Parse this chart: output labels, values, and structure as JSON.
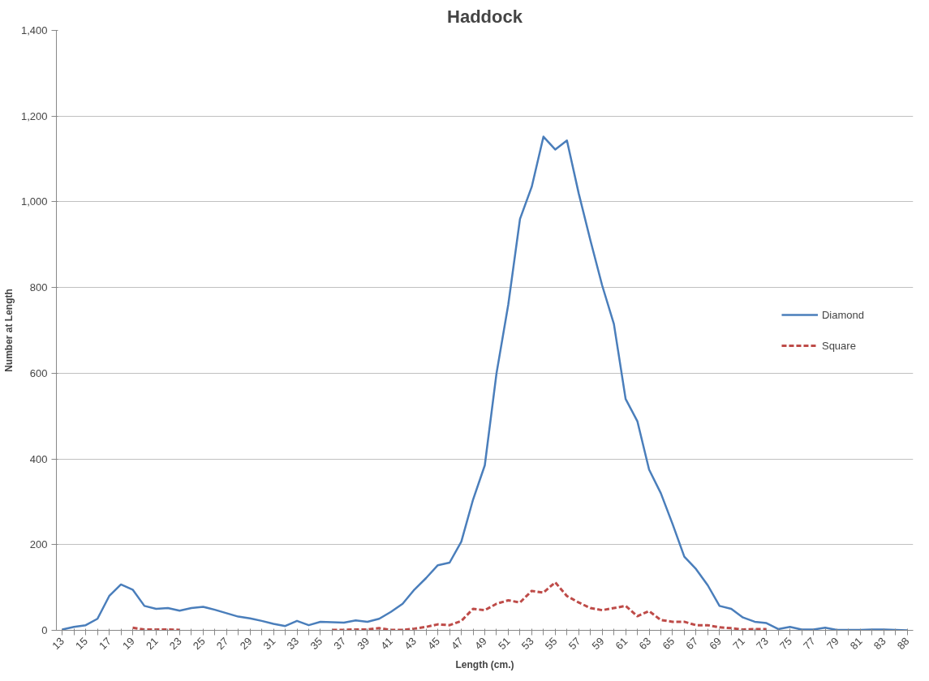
{
  "chart_data": {
    "type": "line",
    "title": "Haddock",
    "xlabel": "Length (cm.)",
    "ylabel": "Number at Length",
    "categories": [
      "13",
      null,
      "15",
      null,
      "17",
      null,
      "19",
      null,
      "21",
      null,
      "23",
      null,
      "25",
      null,
      "27",
      null,
      "29",
      null,
      "31",
      null,
      "33",
      null,
      "35",
      null,
      "37",
      null,
      "39",
      null,
      "41",
      null,
      "43",
      null,
      "45",
      null,
      "47",
      null,
      "49",
      null,
      "51",
      null,
      "53",
      null,
      "55",
      null,
      "57",
      null,
      "59",
      null,
      "61",
      null,
      "63",
      null,
      "65",
      null,
      "67",
      null,
      "69",
      null,
      "71",
      null,
      "73",
      null,
      "75",
      null,
      "77",
      null,
      "79",
      null,
      "81",
      null,
      "83",
      null,
      "88"
    ],
    "series": [
      {
        "name": "Diamond",
        "color": "#4a7ebb",
        "line_style": "solid",
        "values": [
          2,
          8,
          12,
          27,
          80,
          107,
          95,
          57,
          50,
          52,
          46,
          52,
          55,
          48,
          40,
          32,
          28,
          22,
          15,
          10,
          22,
          12,
          20,
          19,
          18,
          23,
          20,
          27,
          43,
          62,
          95,
          122,
          152,
          158,
          207,
          305,
          385,
          600,
          760,
          960,
          1035,
          1152,
          1122,
          1143,
          1020,
          910,
          805,
          715,
          540,
          488,
          375,
          320,
          248,
          172,
          143,
          105,
          57,
          50,
          30,
          20,
          17,
          3,
          8,
          2,
          2,
          6,
          1,
          1,
          1,
          2,
          2,
          1,
          0
        ]
      },
      {
        "name": "Square",
        "color": "#be4b48",
        "line_style": "dashed",
        "values": [
          null,
          null,
          null,
          null,
          null,
          null,
          6,
          2,
          2,
          2,
          1,
          null,
          null,
          null,
          null,
          null,
          null,
          null,
          null,
          null,
          null,
          null,
          null,
          1,
          1,
          2,
          2,
          5,
          1,
          1,
          4,
          8,
          14,
          12,
          22,
          50,
          47,
          62,
          70,
          65,
          92,
          88,
          112,
          80,
          65,
          52,
          47,
          52,
          57,
          33,
          45,
          24,
          20,
          20,
          12,
          12,
          7,
          5,
          2,
          3,
          3,
          null,
          null,
          null,
          null,
          null,
          null,
          null,
          null,
          null,
          null,
          null,
          null
        ]
      }
    ],
    "ylim": [
      0,
      1400
    ],
    "yticks": [
      {
        "value": 0,
        "label": "0"
      },
      {
        "value": 200,
        "label": "200"
      },
      {
        "value": 400,
        "label": "400"
      },
      {
        "value": 600,
        "label": "600"
      },
      {
        "value": 800,
        "label": "800"
      },
      {
        "value": 1000,
        "label": "1,000"
      },
      {
        "value": 1200,
        "label": "1,200"
      },
      {
        "value": 1400,
        "label": "1,400"
      }
    ],
    "grid": "y",
    "legend": "right",
    "marker": "none"
  }
}
